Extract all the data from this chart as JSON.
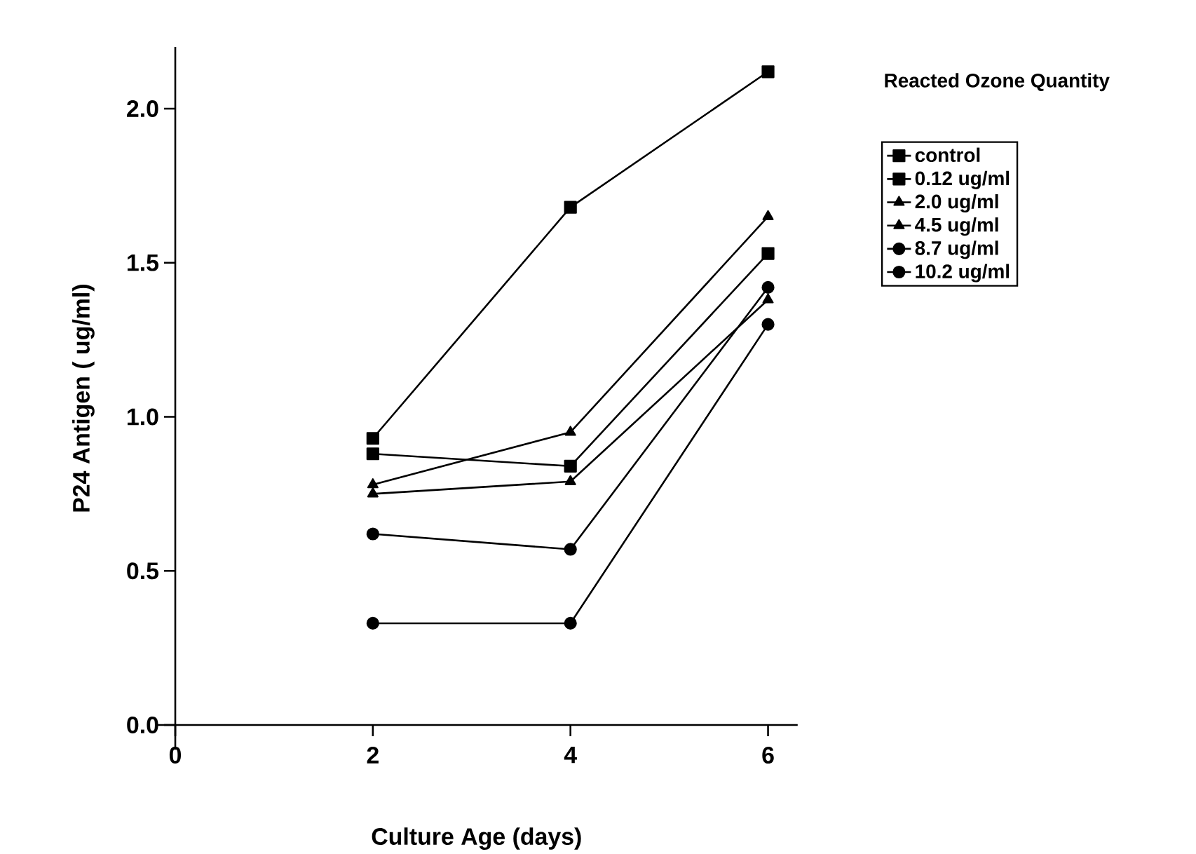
{
  "chart_data": {
    "type": "line",
    "xlabel": "Culture Age (days)",
    "ylabel": "P24 Antigen ( ug/ml)",
    "legend_title": "Reacted Ozone Quantity",
    "legend": "right",
    "x": [
      2,
      4,
      6
    ],
    "xlim": [
      -0.2,
      6.3
    ],
    "ylim": [
      -0.08,
      2.2
    ],
    "xticks": [
      0,
      2,
      4,
      6
    ],
    "yticks": [
      {
        "value": 0,
        "label": "0.0"
      },
      0.5,
      {
        "value": 1,
        "label": "1.0"
      },
      1.5,
      {
        "value": 2,
        "label": "2.0"
      }
    ],
    "grid": false,
    "series": [
      {
        "name": "control",
        "color": "#000000",
        "marker": "square",
        "values": [
          0.93,
          1.68,
          2.12
        ]
      },
      {
        "name": "0.12 ug/ml",
        "color": "#000000",
        "marker": "square",
        "values": [
          0.88,
          0.84,
          1.53
        ]
      },
      {
        "name": "2.0 ug/ml",
        "color": "#000000",
        "marker": "triangle",
        "values": [
          0.78,
          0.95,
          1.65
        ]
      },
      {
        "name": "4.5 ug/ml",
        "color": "#000000",
        "marker": "triangle",
        "values": [
          0.75,
          0.79,
          1.38
        ]
      },
      {
        "name": "8.7 ug/ml",
        "color": "#000000",
        "marker": "circle",
        "values": [
          0.62,
          0.57,
          1.42
        ]
      },
      {
        "name": "10.2 ug/ml",
        "color": "#000000",
        "marker": "circle",
        "values": [
          0.33,
          0.33,
          1.3
        ]
      }
    ]
  }
}
